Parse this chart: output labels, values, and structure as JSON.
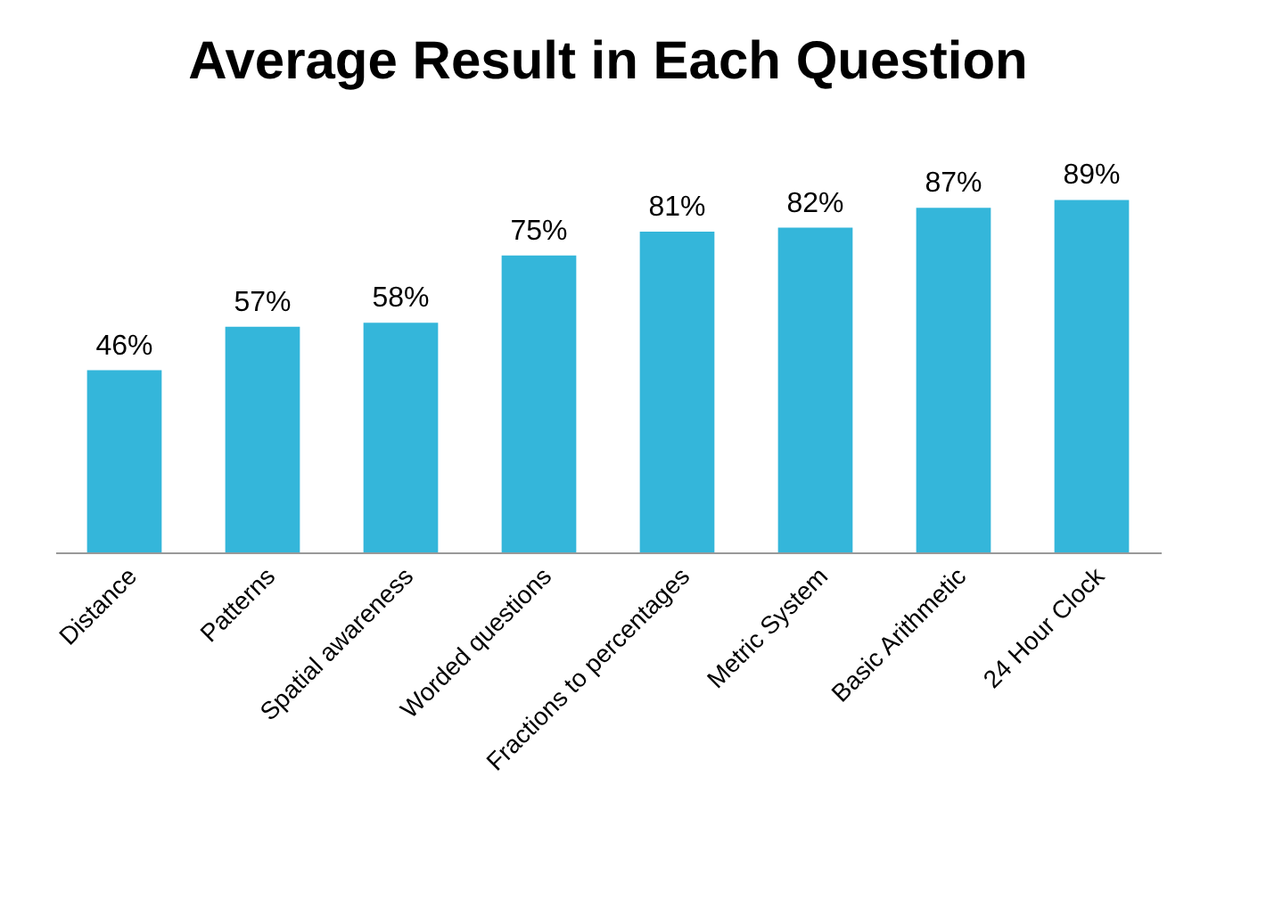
{
  "chart_data": {
    "type": "bar",
    "title": "Average Result in Each Question",
    "categories": [
      "Distance",
      "Patterns",
      "Spatial awareness",
      "Worded questions",
      "Fractions to percentages",
      "Metric System",
      "Basic Arithmetic",
      "24 Hour Clock"
    ],
    "values": [
      46,
      57,
      58,
      75,
      81,
      82,
      87,
      89
    ],
    "value_labels": [
      "46%",
      "57%",
      "58%",
      "75%",
      "81%",
      "82%",
      "87%",
      "89%"
    ],
    "color": "#34b6da"
  }
}
